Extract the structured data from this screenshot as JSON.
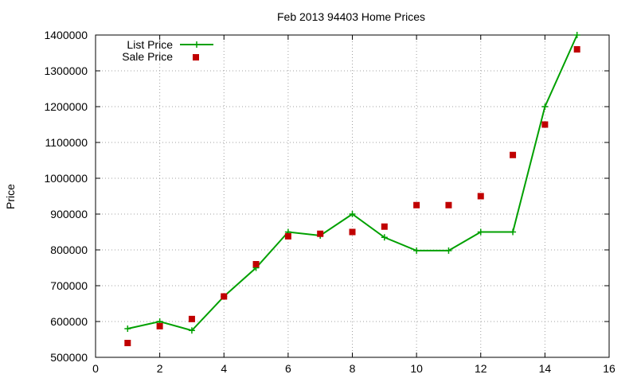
{
  "chart_data": {
    "type": "line",
    "title": "Feb 2013 94403 Home Prices",
    "xlabel": "",
    "ylabel": "Price",
    "xlim": [
      0,
      16
    ],
    "ylim": [
      500000,
      1400000
    ],
    "x_ticks": [
      0,
      2,
      4,
      6,
      8,
      10,
      12,
      14,
      16
    ],
    "y_ticks": [
      500000,
      600000,
      700000,
      800000,
      900000,
      1000000,
      1100000,
      1200000,
      1300000,
      1400000
    ],
    "x_tick_labels": [
      "0",
      "2",
      "4",
      "6",
      "8",
      "10",
      "12",
      "14",
      "16"
    ],
    "y_tick_labels": [
      "500000",
      "600000",
      "700000",
      "800000",
      "900000",
      "1000000",
      "1100000",
      "1200000",
      "1300000",
      "1400000"
    ],
    "grid": true,
    "legend_position": "top-left",
    "series": [
      {
        "name": "List Price",
        "style": "line+cross",
        "color": "#00a000",
        "x": [
          1,
          2,
          3,
          4,
          5,
          6,
          7,
          8,
          9,
          10,
          11,
          12,
          13,
          14,
          15
        ],
        "y": [
          580000,
          600000,
          575000,
          670000,
          750000,
          850000,
          840000,
          900000,
          835000,
          798000,
          798000,
          850000,
          850000,
          1200000,
          1400000
        ]
      },
      {
        "name": "Sale Price",
        "style": "square-points",
        "color": "#c00000",
        "x": [
          1,
          2,
          3,
          4,
          5,
          6,
          7,
          8,
          9,
          10,
          11,
          12,
          13,
          14,
          15
        ],
        "y": [
          540000,
          587000,
          607000,
          670000,
          760000,
          838000,
          845000,
          850000,
          865000,
          925000,
          925000,
          950000,
          1065000,
          1150000,
          1360000
        ]
      }
    ]
  }
}
